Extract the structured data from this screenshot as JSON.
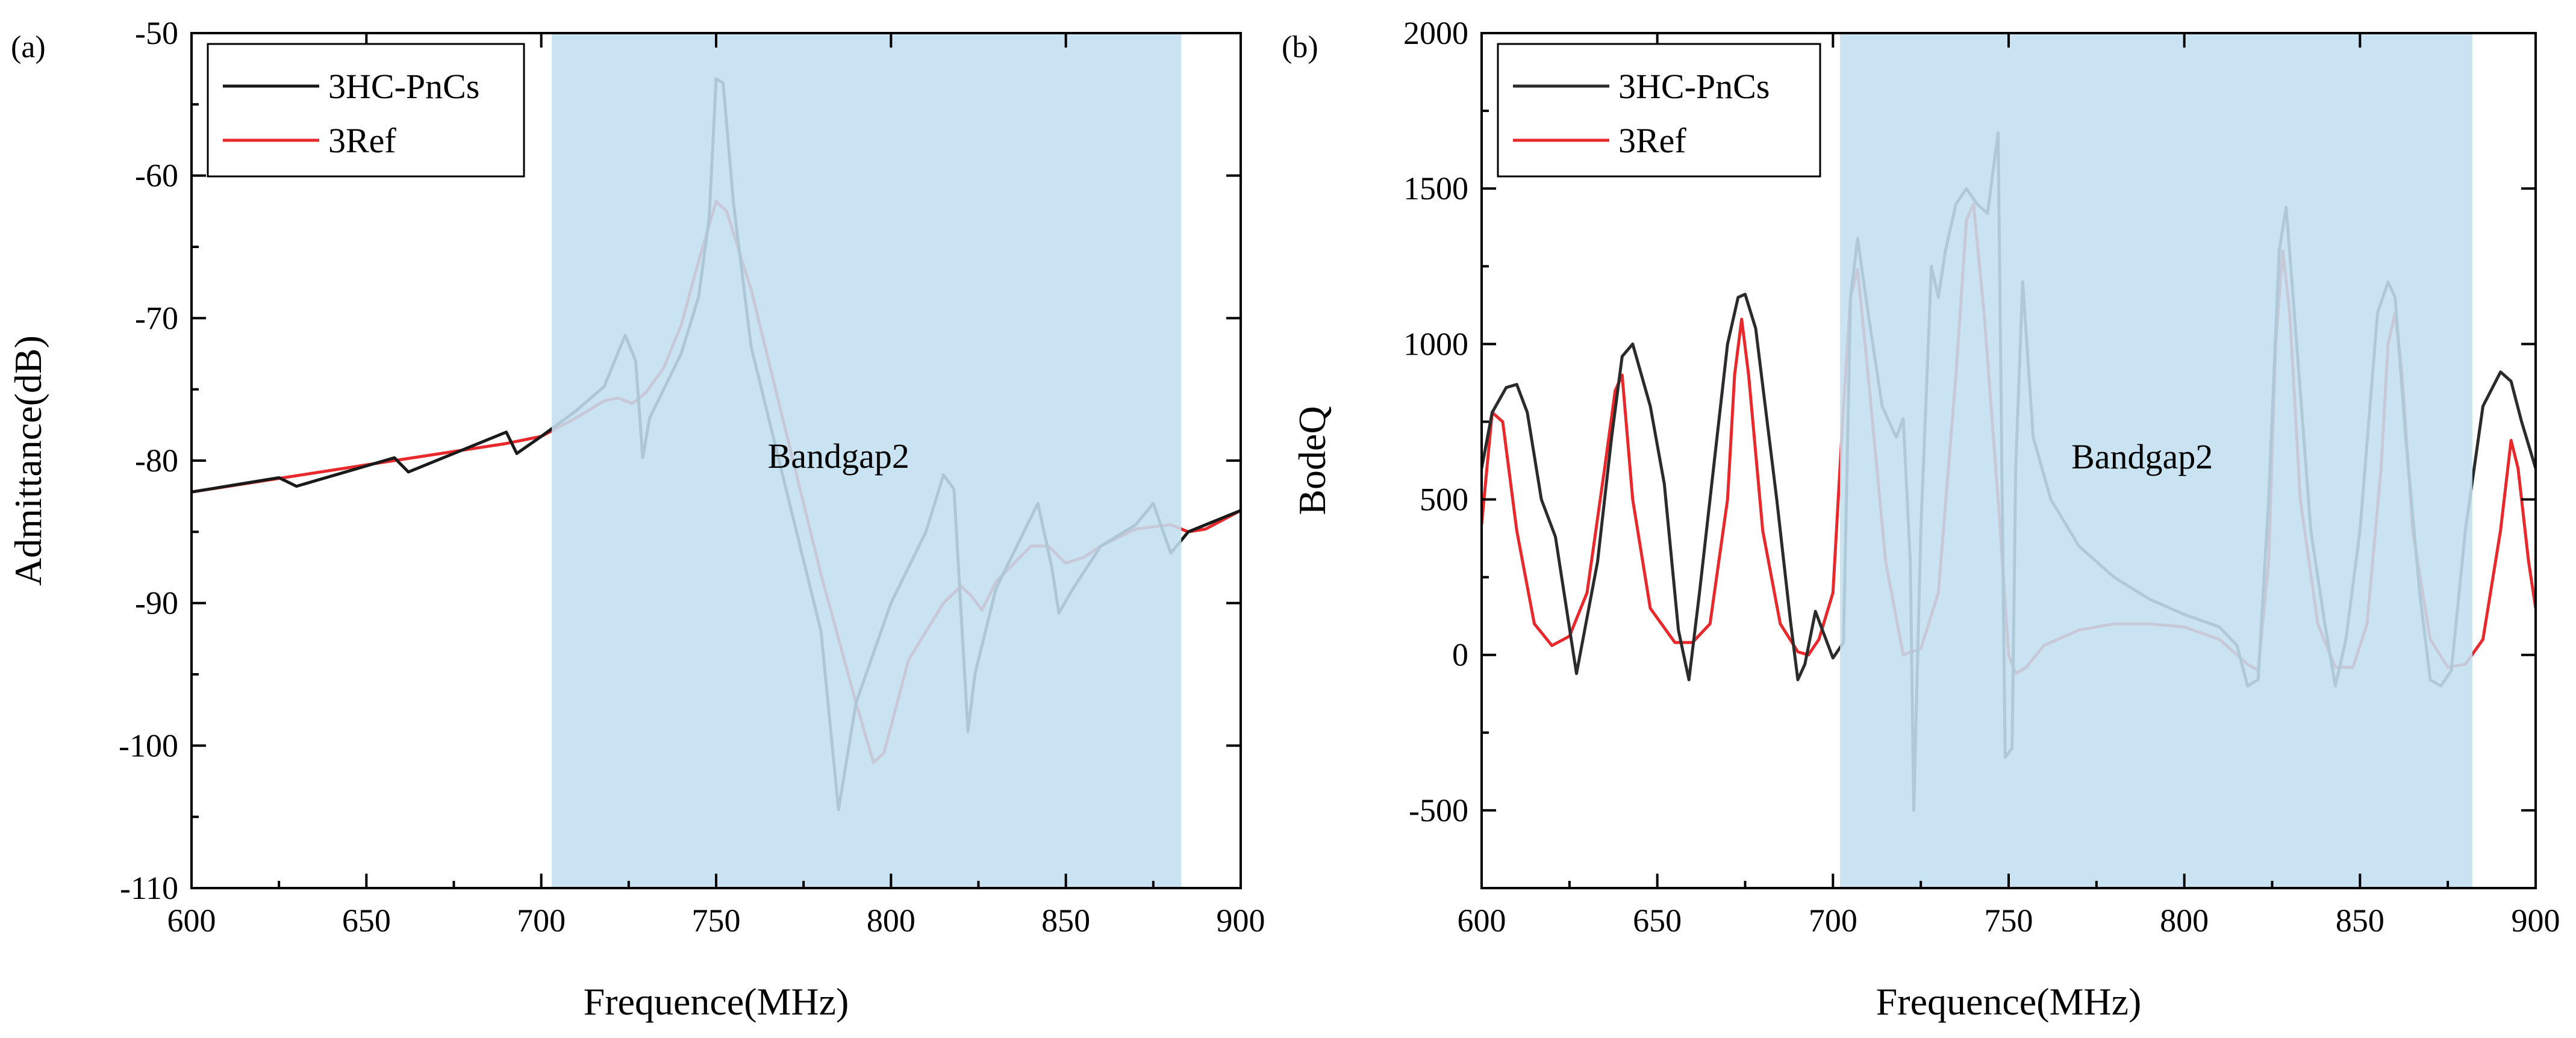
{
  "chart_data": [
    {
      "panel_label": "(a)",
      "type": "line",
      "xlabel": "Frequence(MHz)",
      "ylabel": "Admittance(dB)",
      "xlim": [
        600,
        900
      ],
      "ylim": [
        -110,
        -50
      ],
      "xticks": [
        600,
        650,
        700,
        750,
        800,
        850,
        900
      ],
      "yticks": [
        -110,
        -100,
        -90,
        -80,
        -70,
        -60,
        -50
      ],
      "legend_position": "top-left",
      "shaded_band": {
        "x0": 703,
        "x1": 883,
        "color": "#c3dff0",
        "label": "Bandgap2",
        "label_x": 785,
        "label_y": -80.5
      },
      "series": [
        {
          "name": "3HC-PnCs",
          "color": "#1a1a1a",
          "x": [
            600,
            625,
            630,
            658,
            662,
            690,
            693,
            700,
            710,
            718,
            724,
            727,
            729,
            731,
            740,
            745,
            748,
            750,
            752,
            755,
            760,
            770,
            780,
            785,
            790,
            800,
            810,
            815,
            818,
            822,
            824,
            830,
            842,
            846,
            848,
            852,
            860,
            870,
            875,
            880,
            885,
            890,
            900
          ],
          "values": [
            -82.2,
            -81.2,
            -81.8,
            -79.8,
            -80.8,
            -78.0,
            -79.5,
            -78.3,
            -76.5,
            -74.8,
            -71.2,
            -73.0,
            -79.8,
            -77.0,
            -72.5,
            -68.5,
            -63.0,
            -53.2,
            -53.5,
            -62.0,
            -72.0,
            -82.0,
            -92.0,
            -104.5,
            -97.0,
            -90.0,
            -85.0,
            -81.0,
            -82.0,
            -99.0,
            -95.0,
            -89.0,
            -83.0,
            -87.5,
            -90.7,
            -89.0,
            -86.0,
            -84.5,
            -83.0,
            -86.5,
            -85.0,
            -84.5,
            -83.5
          ]
        },
        {
          "name": "3Ref",
          "color": "#e8282b",
          "x": [
            600,
            650,
            690,
            700,
            710,
            718,
            722,
            726,
            730,
            735,
            740,
            745,
            750,
            753,
            760,
            770,
            780,
            790,
            795,
            798,
            805,
            815,
            820,
            823,
            826,
            830,
            840,
            845,
            850,
            855,
            860,
            870,
            880,
            885,
            890,
            900
          ],
          "values": [
            -82.2,
            -80.3,
            -78.8,
            -78.3,
            -77.0,
            -75.8,
            -75.6,
            -76.0,
            -75.2,
            -73.5,
            -70.5,
            -66.0,
            -61.8,
            -62.5,
            -68.0,
            -78.0,
            -88.0,
            -97.0,
            -101.2,
            -100.5,
            -94.0,
            -90.0,
            -88.8,
            -89.5,
            -90.5,
            -88.5,
            -86.0,
            -86.0,
            -87.2,
            -86.8,
            -86.0,
            -84.8,
            -84.5,
            -85.0,
            -84.8,
            -83.5
          ]
        }
      ]
    },
    {
      "panel_label": "(b)",
      "type": "line",
      "xlabel": "Frequence(MHz)",
      "ylabel": "BodeQ",
      "xlim": [
        600,
        900
      ],
      "ylim": [
        -750,
        2000
      ],
      "xticks": [
        600,
        650,
        700,
        750,
        800,
        850,
        900
      ],
      "yticks": [
        -500,
        0,
        500,
        1000,
        1500,
        2000
      ],
      "legend_position": "top-left",
      "shaded_band": {
        "x0": 702,
        "x1": 882,
        "color": "#c3dff0",
        "label": "Bandgap2",
        "label_x": 788,
        "label_y": 600
      },
      "series": [
        {
          "name": "3HC-PnCs",
          "color": "#2b2b2b",
          "x": [
            600,
            603,
            607,
            610,
            613,
            617,
            621,
            624,
            627,
            633,
            637,
            640,
            643,
            648,
            652,
            656,
            659,
            662,
            667,
            670,
            673,
            675,
            678,
            684,
            688,
            690,
            692,
            695,
            697,
            700,
            703,
            705,
            707,
            710,
            714,
            718,
            720,
            722,
            723,
            725,
            728,
            730,
            732,
            735,
            738,
            741,
            744,
            747,
            749,
            751,
            752,
            754,
            757,
            762,
            770,
            780,
            790,
            800,
            810,
            815,
            818,
            821,
            824,
            827,
            829,
            832,
            836,
            840,
            843,
            846,
            850,
            855,
            858,
            860,
            863,
            867,
            870,
            873,
            876,
            880,
            885,
            890,
            893,
            896,
            900
          ],
          "values": [
            600,
            780,
            860,
            870,
            780,
            500,
            380,
            160,
            -60,
            300,
            700,
            960,
            1000,
            800,
            550,
            80,
            -80,
            200,
            700,
            1000,
            1150,
            1160,
            1050,
            500,
            100,
            -80,
            -30,
            140,
            80,
            -10,
            40,
            1150,
            1340,
            1100,
            800,
            700,
            760,
            300,
            -500,
            400,
            1250,
            1150,
            1300,
            1450,
            1500,
            1450,
            1420,
            1680,
            -330,
            -300,
            600,
            1200,
            700,
            500,
            350,
            250,
            180,
            130,
            90,
            30,
            -100,
            -80,
            500,
            1300,
            1440,
            1000,
            400,
            100,
            -100,
            50,
            400,
            1100,
            1200,
            1150,
            700,
            200,
            -80,
            -100,
            -50,
            400,
            800,
            910,
            880,
            750,
            600
          ]
        },
        {
          "name": "3Ref",
          "color": "#e8282b",
          "x": [
            600,
            603,
            606,
            610,
            615,
            620,
            625,
            630,
            635,
            638,
            640,
            643,
            648,
            655,
            660,
            665,
            670,
            672,
            674,
            676,
            680,
            685,
            690,
            693,
            696,
            700,
            703,
            705,
            707,
            710,
            715,
            720,
            725,
            730,
            735,
            738,
            740,
            743,
            747,
            750,
            752,
            755,
            760,
            770,
            780,
            790,
            800,
            810,
            818,
            821,
            824,
            826,
            828,
            830,
            833,
            838,
            843,
            848,
            852,
            856,
            858,
            860,
            862,
            865,
            870,
            875,
            880,
            885,
            890,
            893,
            895,
            898,
            900
          ],
          "values": [
            420,
            780,
            750,
            400,
            100,
            30,
            60,
            200,
            600,
            850,
            900,
            500,
            150,
            40,
            40,
            100,
            500,
            900,
            1080,
            900,
            400,
            100,
            10,
            0,
            50,
            200,
            800,
            1150,
            1240,
            900,
            300,
            0,
            20,
            200,
            900,
            1400,
            1450,
            1100,
            500,
            0,
            -60,
            -40,
            30,
            80,
            100,
            100,
            90,
            50,
            -30,
            -50,
            300,
            1000,
            1300,
            1100,
            500,
            100,
            -40,
            -40,
            100,
            600,
            1000,
            1100,
            900,
            400,
            50,
            -40,
            -30,
            50,
            400,
            690,
            600,
            300,
            150
          ]
        }
      ]
    }
  ]
}
